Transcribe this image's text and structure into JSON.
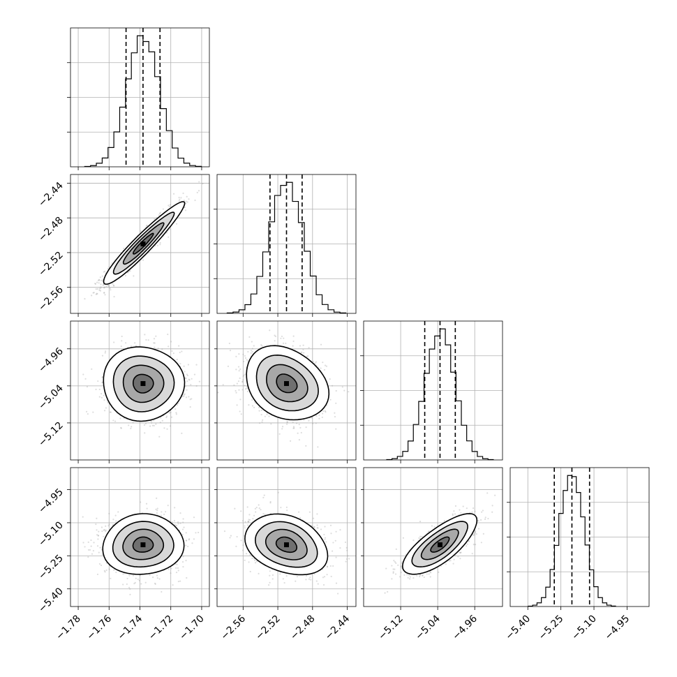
{
  "chart_data": {
    "type": "corner",
    "title": "",
    "grid": true,
    "scatter_color": "#9e9e9e",
    "density_color": "#000000",
    "parameters": [
      {
        "index": 0,
        "range": [
          -1.785,
          -1.695
        ],
        "ticks": [
          -1.78,
          -1.76,
          -1.74,
          -1.72,
          -1.7
        ],
        "tick_labels": [
          "−1.78",
          "−1.76",
          "−1.74",
          "−1.72",
          "−1.70"
        ],
        "mean": -1.738,
        "std": 0.0105,
        "quantiles": [
          -1.749,
          -1.738,
          -1.727
        ]
      },
      {
        "index": 1,
        "range": [
          -2.59,
          -2.43
        ],
        "ticks": [
          -2.56,
          -2.52,
          -2.48,
          -2.44
        ],
        "tick_labels": [
          "−2.56",
          "−2.52",
          "−2.48",
          "−2.44"
        ],
        "mean": -2.51,
        "std": 0.019,
        "quantiles": [
          -2.529,
          -2.51,
          -2.492
        ]
      },
      {
        "index": 2,
        "range": [
          -5.2,
          -4.9
        ],
        "ticks": [
          -5.12,
          -5.04,
          -4.96
        ],
        "tick_labels": [
          "−5.12",
          "−5.04",
          "−4.96"
        ],
        "mean": -5.035,
        "std": 0.032,
        "quantiles": [
          -5.068,
          -5.035,
          -5.002
        ]
      },
      {
        "index": 3,
        "range": [
          -5.48,
          -4.85
        ],
        "ticks": [
          -5.4,
          -5.25,
          -5.1,
          -4.95
        ],
        "tick_labels": [
          "−5.40",
          "−5.25",
          "−5.10",
          "−4.95"
        ],
        "mean": -5.2,
        "std": 0.055,
        "quantiles": [
          -5.28,
          -5.2,
          -5.12
        ]
      }
    ],
    "correlations": [
      [
        1.0,
        0.95,
        -0.02,
        0.05
      ],
      [
        0.95,
        1.0,
        -0.25,
        -0.28
      ],
      [
        -0.02,
        -0.25,
        1.0,
        0.75
      ],
      [
        0.05,
        -0.28,
        0.75,
        1.0
      ]
    ],
    "contour_levels_sigma": [
      0.5,
      1.0,
      1.5,
      2.0
    ],
    "histogram_bins": 20
  }
}
